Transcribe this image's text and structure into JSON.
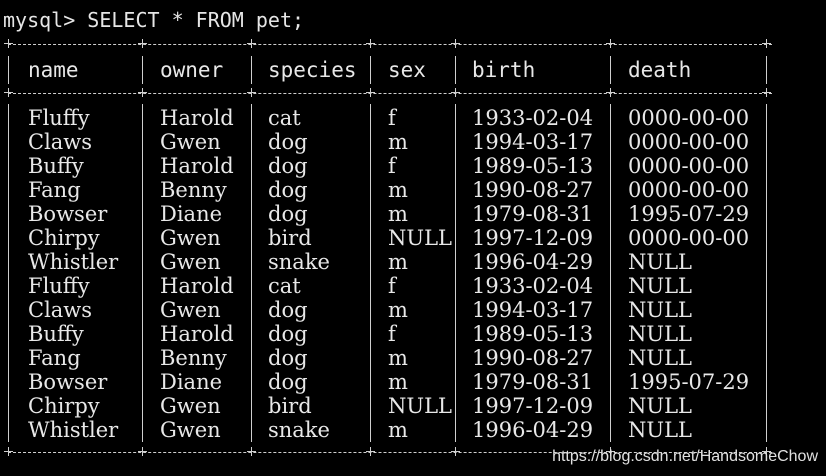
{
  "console": {
    "prompt": "mysql>",
    "command": "SELECT * FROM pet;"
  },
  "table": {
    "columns": [
      "name",
      "owner",
      "species",
      "sex",
      "birth",
      "death"
    ],
    "rows": [
      [
        "Fluffy",
        "Harold",
        "cat",
        "f",
        "1933-02-04",
        "0000-00-00"
      ],
      [
        "Claws",
        "Gwen",
        "dog",
        "m",
        "1994-03-17",
        "0000-00-00"
      ],
      [
        "Buffy",
        "Harold",
        "dog",
        "f",
        "1989-05-13",
        "0000-00-00"
      ],
      [
        "Fang",
        "Benny",
        "dog",
        "m",
        "1990-08-27",
        "0000-00-00"
      ],
      [
        "Bowser",
        "Diane",
        "dog",
        "m",
        "1979-08-31",
        "1995-07-29"
      ],
      [
        "Chirpy",
        "Gwen",
        "bird",
        "NULL",
        "1997-12-09",
        "0000-00-00"
      ],
      [
        "Whistler",
        "Gwen",
        "snake",
        "m",
        "1996-04-29",
        "NULL"
      ],
      [
        "Fluffy",
        "Harold",
        "cat",
        "f",
        "1933-02-04",
        "NULL"
      ],
      [
        "Claws",
        "Gwen",
        "dog",
        "m",
        "1994-03-17",
        "NULL"
      ],
      [
        "Buffy",
        "Harold",
        "dog",
        "f",
        "1989-05-13",
        "NULL"
      ],
      [
        "Fang",
        "Benny",
        "dog",
        "m",
        "1990-08-27",
        "NULL"
      ],
      [
        "Bowser",
        "Diane",
        "dog",
        "m",
        "1979-08-31",
        "1995-07-29"
      ],
      [
        "Chirpy",
        "Gwen",
        "bird",
        "NULL",
        "1997-12-09",
        "NULL"
      ],
      [
        "Whistler",
        "Gwen",
        "snake",
        "m",
        "1996-04-29",
        "NULL"
      ]
    ]
  },
  "watermark": "https://blog.csdn.net/HandsomeChow",
  "colors": {
    "background": "#000000",
    "text": "#e8e8e8",
    "border": "#cfcfcf"
  }
}
